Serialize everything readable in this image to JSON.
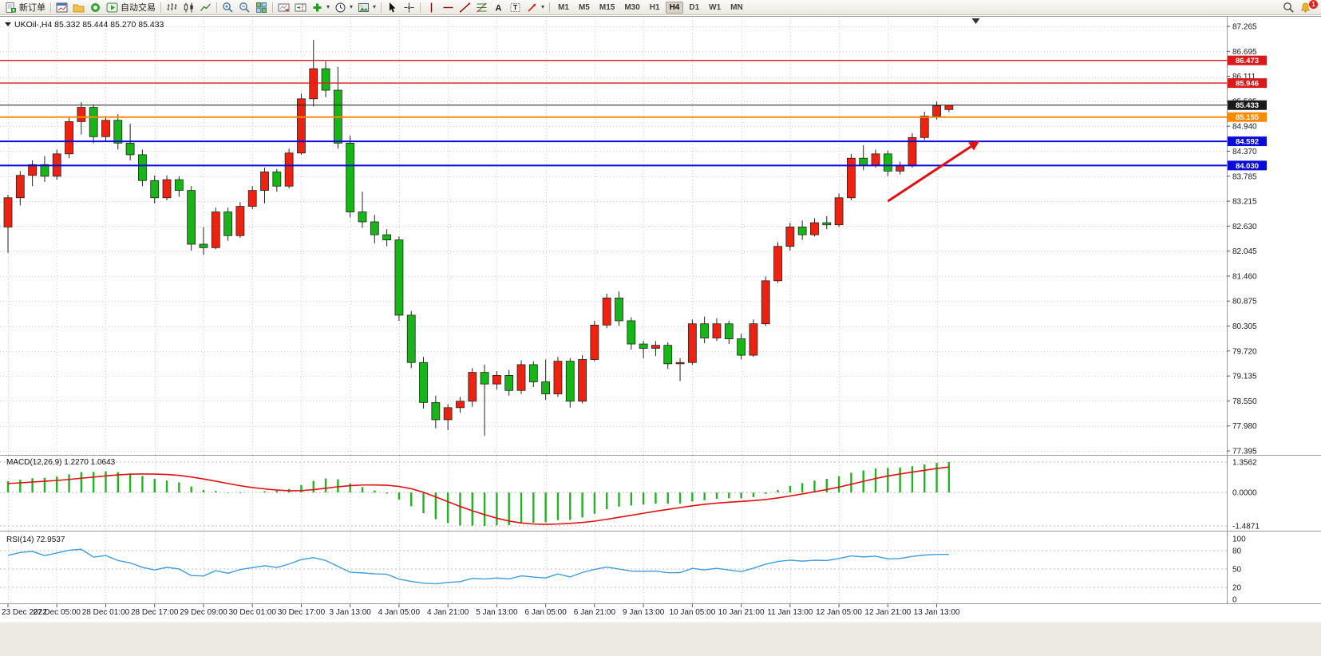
{
  "toolbar": {
    "buttons": {
      "new_order": "新订单",
      "autotrading": "自动交易"
    },
    "icons": {
      "text_tool": "A",
      "label_tool": "T"
    },
    "timeframes": [
      "M1",
      "M5",
      "M15",
      "M30",
      "H1",
      "H4",
      "D1",
      "W1",
      "MN"
    ],
    "active_timeframe": "H4",
    "notification_badge": "1"
  },
  "chart": {
    "title": "UKOil-,H4 85.332 85.444 85.270 85.433",
    "symbol_period": "UKOil-,H4",
    "ohlc": {
      "open": "85.332",
      "high": "85.444",
      "low": "85.270",
      "close": "85.433"
    }
  },
  "chart_data": {
    "type": "candlestick",
    "symbol": "UKOil-",
    "timeframe": "H4",
    "price_axis_ticks": [
      87.265,
      86.695,
      86.111,
      85.525,
      84.94,
      84.37,
      83.785,
      83.215,
      82.63,
      82.045,
      81.46,
      80.875,
      80.305,
      79.72,
      79.135,
      78.55,
      77.98,
      77.395
    ],
    "candles": [
      [
        82.6,
        83.35,
        82.0,
        83.28
      ],
      [
        83.28,
        83.9,
        83.1,
        83.8
      ],
      [
        83.8,
        84.15,
        83.55,
        84.05
      ],
      [
        84.05,
        84.25,
        83.65,
        83.78
      ],
      [
        83.78,
        84.4,
        83.7,
        84.3
      ],
      [
        84.3,
        85.15,
        84.2,
        85.05
      ],
      [
        85.05,
        85.5,
        84.75,
        85.38
      ],
      [
        85.38,
        85.45,
        84.55,
        84.7
      ],
      [
        84.7,
        85.18,
        84.6,
        85.08
      ],
      [
        85.08,
        85.22,
        84.4,
        84.55
      ],
      [
        84.55,
        85.0,
        84.15,
        84.28
      ],
      [
        84.28,
        84.4,
        83.55,
        83.68
      ],
      [
        83.68,
        83.8,
        83.15,
        83.28
      ],
      [
        83.28,
        83.8,
        83.22,
        83.7
      ],
      [
        83.7,
        83.78,
        83.3,
        83.45
      ],
      [
        83.45,
        83.55,
        82.05,
        82.2
      ],
      [
        82.2,
        82.6,
        81.95,
        82.12
      ],
      [
        82.12,
        83.05,
        82.08,
        82.95
      ],
      [
        82.95,
        83.05,
        82.28,
        82.4
      ],
      [
        82.4,
        83.18,
        82.35,
        83.08
      ],
      [
        83.08,
        83.55,
        83.02,
        83.45
      ],
      [
        83.45,
        83.98,
        83.15,
        83.88
      ],
      [
        83.88,
        83.95,
        83.42,
        83.55
      ],
      [
        83.55,
        84.42,
        83.5,
        84.32
      ],
      [
        84.32,
        85.7,
        84.28,
        85.58
      ],
      [
        85.58,
        86.95,
        85.4,
        86.28
      ],
      [
        86.28,
        86.45,
        85.62,
        85.78
      ],
      [
        85.78,
        86.32,
        84.42,
        84.55
      ],
      [
        84.55,
        84.72,
        82.82,
        82.95
      ],
      [
        82.95,
        83.42,
        82.58,
        82.72
      ],
      [
        82.72,
        82.88,
        82.22,
        82.42
      ],
      [
        82.42,
        82.55,
        82.15,
        82.3
      ],
      [
        82.3,
        82.38,
        80.42,
        80.55
      ],
      [
        80.55,
        80.65,
        79.32,
        79.45
      ],
      [
        79.45,
        79.58,
        78.38,
        78.52
      ],
      [
        78.52,
        78.68,
        77.92,
        78.12
      ],
      [
        78.12,
        78.48,
        77.88,
        78.4
      ],
      [
        78.4,
        78.65,
        78.28,
        78.55
      ],
      [
        78.55,
        79.32,
        78.42,
        79.22
      ],
      [
        79.22,
        79.4,
        77.75,
        78.95
      ],
      [
        78.95,
        79.25,
        78.82,
        79.15
      ],
      [
        79.15,
        79.28,
        78.68,
        78.8
      ],
      [
        78.8,
        79.5,
        78.72,
        79.4
      ],
      [
        79.4,
        79.48,
        78.88,
        79.0
      ],
      [
        79.0,
        79.52,
        78.58,
        78.72
      ],
      [
        78.72,
        79.58,
        78.65,
        79.48
      ],
      [
        79.48,
        79.55,
        78.4,
        78.55
      ],
      [
        78.55,
        79.62,
        78.5,
        79.52
      ],
      [
        79.52,
        80.42,
        79.48,
        80.32
      ],
      [
        80.32,
        81.05,
        80.25,
        80.95
      ],
      [
        80.95,
        81.1,
        80.3,
        80.42
      ],
      [
        80.42,
        80.5,
        79.75,
        79.88
      ],
      [
        79.88,
        79.95,
        79.55,
        79.78
      ],
      [
        79.78,
        79.95,
        79.6,
        79.85
      ],
      [
        79.85,
        79.92,
        79.3,
        79.42
      ],
      [
        79.42,
        79.55,
        79.02,
        79.45
      ],
      [
        79.45,
        80.45,
        79.4,
        80.35
      ],
      [
        80.35,
        80.52,
        79.9,
        80.02
      ],
      [
        80.02,
        80.48,
        79.95,
        80.35
      ],
      [
        80.35,
        80.42,
        79.88,
        80.0
      ],
      [
        80.0,
        80.12,
        79.52,
        79.62
      ],
      [
        79.62,
        80.45,
        79.58,
        80.35
      ],
      [
        80.35,
        81.45,
        80.3,
        81.35
      ],
      [
        81.35,
        82.25,
        81.3,
        82.15
      ],
      [
        82.15,
        82.7,
        82.05,
        82.6
      ],
      [
        82.6,
        82.75,
        82.3,
        82.42
      ],
      [
        82.42,
        82.8,
        82.38,
        82.7
      ],
      [
        82.7,
        82.85,
        82.55,
        82.65
      ],
      [
        82.65,
        83.38,
        82.6,
        83.28
      ],
      [
        83.28,
        84.3,
        83.22,
        84.2
      ],
      [
        84.2,
        84.5,
        83.92,
        84.04
      ],
      [
        84.04,
        84.4,
        83.98,
        84.3
      ],
      [
        84.3,
        84.38,
        83.78,
        83.9
      ],
      [
        83.9,
        84.12,
        83.82,
        84.02
      ],
      [
        84.02,
        84.78,
        83.98,
        84.68
      ],
      [
        84.68,
        85.28,
        84.62,
        85.18
      ],
      [
        85.18,
        85.52,
        85.1,
        85.42
      ],
      [
        85.33,
        85.44,
        85.27,
        85.43
      ]
    ],
    "time_ticks": [
      {
        "bar": 0,
        "label": "23 Dec 2022"
      },
      {
        "bar": 4,
        "label": "27 Dec 05:00"
      },
      {
        "bar": 8,
        "label": "28 Dec 01:00"
      },
      {
        "bar": 12,
        "label": "28 Dec 17:00"
      },
      {
        "bar": 16,
        "label": "29 Dec 09:00"
      },
      {
        "bar": 20,
        "label": "30 Dec 01:00"
      },
      {
        "bar": 24,
        "label": "30 Dec 17:00"
      },
      {
        "bar": 28,
        "label": "3 Jan 13:00"
      },
      {
        "bar": 32,
        "label": "4 Jan 05:00"
      },
      {
        "bar": 36,
        "label": "4 Jan 21:00"
      },
      {
        "bar": 40,
        "label": "5 Jan 13:00"
      },
      {
        "bar": 44,
        "label": "6 Jan 05:00"
      },
      {
        "bar": 48,
        "label": "6 Jan 21:00"
      },
      {
        "bar": 52,
        "label": "9 Jan 13:00"
      },
      {
        "bar": 56,
        "label": "10 Jan 05:00"
      },
      {
        "bar": 60,
        "label": "10 Jan 21:00"
      },
      {
        "bar": 64,
        "label": "11 Jan 13:00"
      },
      {
        "bar": 68,
        "label": "12 Jan 05:00"
      },
      {
        "bar": 72,
        "label": "12 Jan 21:00"
      },
      {
        "bar": 76,
        "label": "13 Jan 13:00"
      }
    ],
    "hlines": [
      {
        "price": 86.473,
        "color": "#d91a1a",
        "width": 1.4,
        "label": "86.473"
      },
      {
        "price": 85.946,
        "color": "#d91a1a",
        "width": 1.4,
        "label": "85.946"
      },
      {
        "price": 85.433,
        "color": "#1a1a1a",
        "width": 1,
        "label": "85.433",
        "role": "last-price"
      },
      {
        "price": 85.155,
        "color": "#ff8a00",
        "width": 2,
        "label": "85.155"
      },
      {
        "price": 84.592,
        "color": "#0a0ad9",
        "width": 2,
        "label": "84.592"
      },
      {
        "price": 84.03,
        "color": "#0a0ad9",
        "width": 2,
        "label": "84.030"
      }
    ],
    "trend_arrow": {
      "from_bar": 72,
      "from_price": 83.2,
      "to_bar": 79.5,
      "to_price": 84.6,
      "color": "#e01010"
    },
    "shift_marker_bar": 79.2,
    "colors": {
      "bull": "#ee2211",
      "bear": "#16b616",
      "outline": "#222222",
      "grid": "#cfcfcf",
      "bg": "#ffffff",
      "macd_hist": "#22b322",
      "macd_signal": "#e01010",
      "rsi_line": "#3e9ddd"
    },
    "macd": {
      "label": "MACD(12,26,9)",
      "value_main": "1.2270",
      "value_signal": "1.0643",
      "axis_labels": [
        "1.3562",
        "0.0000",
        "-1.4871"
      ],
      "axis_values": [
        1.3562,
        0,
        -1.4871
      ],
      "params": [
        12,
        26,
        9
      ]
    },
    "rsi": {
      "label": "RSI(14)",
      "value": "72.9537",
      "axis_labels": [
        "100",
        "80",
        "50",
        "20",
        "0"
      ],
      "axis_values": [
        100,
        80,
        50,
        20,
        0
      ],
      "levels": [
        80,
        50,
        20
      ],
      "params": [
        14
      ]
    }
  }
}
